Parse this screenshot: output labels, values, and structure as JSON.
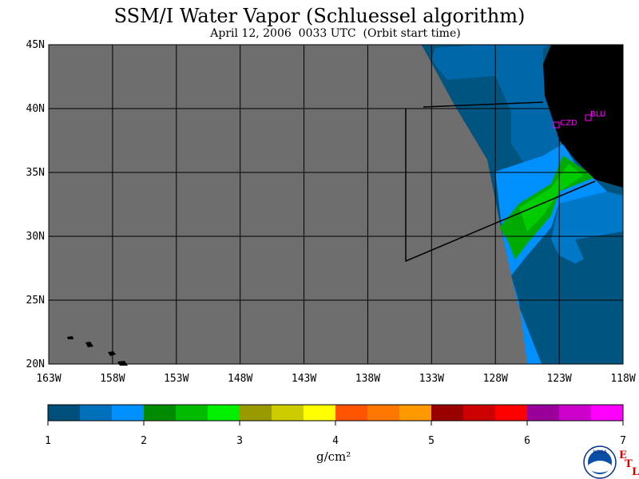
{
  "header": {
    "title": "SSM/I Water Vapor (Schluessel algorithm)",
    "subtitle": "April 12, 2006  0033 UTC  (Orbit start time)"
  },
  "map": {
    "lat_labels": [
      "45N",
      "40N",
      "35N",
      "30N",
      "25N",
      "20N"
    ],
    "lon_labels": [
      "163W",
      "158W",
      "153W",
      "148W",
      "143W",
      "138W",
      "133W",
      "128W",
      "123W",
      "118W"
    ],
    "stations": [
      {
        "name": "CZD",
        "color": "#ff00ff"
      },
      {
        "name": "BLU",
        "color": "#ff00ff"
      }
    ],
    "colors": {
      "no_data": "#6e6e6e",
      "land": "#000000"
    }
  },
  "colorbar": {
    "units": "g/cm²",
    "ticks": [
      "1",
      "2",
      "3",
      "4",
      "5",
      "6",
      "7"
    ],
    "colors": [
      "#004f7a",
      "#0070bb",
      "#0090ff",
      "#008a00",
      "#00bb00",
      "#00f000",
      "#999900",
      "#cccc00",
      "#ffff00",
      "#ff5500",
      "#ff7700",
      "#ff9900",
      "#990000",
      "#cc0000",
      "#ff0000",
      "#990099",
      "#cc00cc",
      "#ff00ff"
    ]
  },
  "logo": {
    "text": "NOAA",
    "etl_letters": [
      "E",
      "T",
      "L"
    ]
  }
}
